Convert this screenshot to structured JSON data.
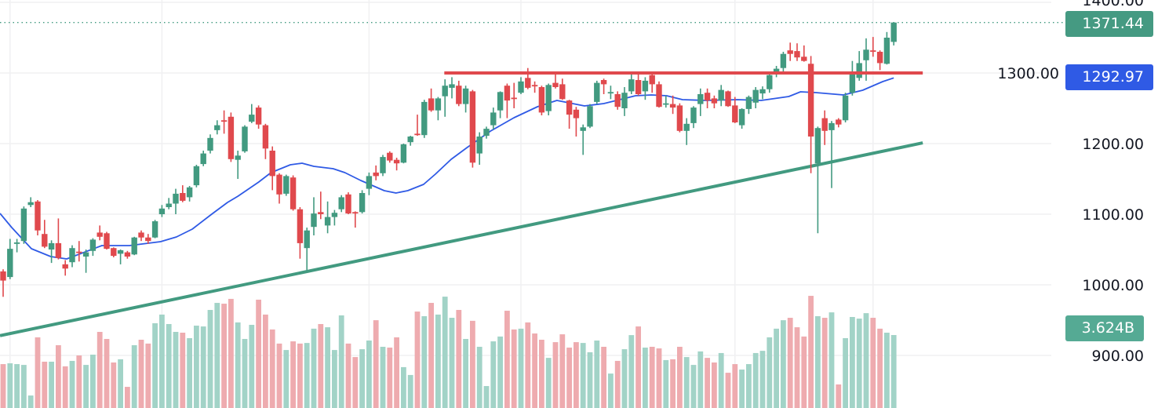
{
  "chart_data": {
    "type": "candlestick",
    "title": "",
    "xlabel": "",
    "ylabel": "",
    "ylim": [
      896,
      1403
    ],
    "y_ticks": [
      "1400.00",
      "1300.00",
      "1200.00",
      "1100.00",
      "1000.00",
      "900.00"
    ],
    "y_tick_values": [
      1400,
      1300,
      1200,
      1100,
      1000,
      900
    ],
    "grid": true,
    "colors": {
      "up": "#429a80",
      "down": "#e0494d",
      "up_volume": "#a2d3c7",
      "down_volume": "#eeabaf",
      "ma": "#2f5ae5",
      "resistance": "#e0494d",
      "support": "#429a80",
      "last_price": "#429a80"
    },
    "candles_ohlc": [
      [
        1019,
        1022,
        983,
        1006
      ],
      [
        1011,
        1065,
        1008,
        1051
      ],
      [
        1059,
        1065,
        1046,
        1060
      ],
      [
        1062,
        1111,
        1058,
        1108
      ],
      [
        1113,
        1124,
        1110,
        1117
      ],
      [
        1118,
        1120,
        1070,
        1077
      ],
      [
        1072,
        1092,
        1052,
        1054
      ],
      [
        1050,
        1063,
        1031,
        1059
      ],
      [
        1059,
        1094,
        1036,
        1038
      ],
      [
        1029,
        1035,
        1013,
        1023
      ],
      [
        1032,
        1056,
        1025,
        1052
      ],
      [
        1047,
        1062,
        1033,
        1046
      ],
      [
        1040,
        1050,
        1017,
        1046
      ],
      [
        1048,
        1066,
        1041,
        1064
      ],
      [
        1074,
        1084,
        1063,
        1068
      ],
      [
        1073,
        1075,
        1050,
        1051
      ],
      [
        1052,
        1053,
        1039,
        1041
      ],
      [
        1044,
        1050,
        1029,
        1049
      ],
      [
        1046,
        1048,
        1037,
        1040
      ],
      [
        1043,
        1068,
        1042,
        1067
      ],
      [
        1074,
        1077,
        1062,
        1067
      ],
      [
        1067,
        1072,
        1058,
        1062
      ],
      [
        1067,
        1092,
        1066,
        1090
      ],
      [
        1100,
        1113,
        1096,
        1108
      ],
      [
        1110,
        1123,
        1107,
        1115
      ],
      [
        1115,
        1136,
        1100,
        1129
      ],
      [
        1130,
        1141,
        1117,
        1119
      ],
      [
        1124,
        1140,
        1118,
        1138
      ],
      [
        1141,
        1170,
        1138,
        1168
      ],
      [
        1171,
        1190,
        1168,
        1186
      ],
      [
        1190,
        1213,
        1186,
        1208
      ],
      [
        1219,
        1233,
        1213,
        1226
      ],
      [
        1233,
        1247,
        1214,
        1231
      ],
      [
        1238,
        1244,
        1174,
        1178
      ],
      [
        1177,
        1190,
        1150,
        1183
      ],
      [
        1189,
        1226,
        1187,
        1224
      ],
      [
        1231,
        1256,
        1229,
        1241
      ],
      [
        1251,
        1254,
        1221,
        1227
      ],
      [
        1226,
        1228,
        1178,
        1193
      ],
      [
        1190,
        1196,
        1134,
        1154
      ],
      [
        1156,
        1158,
        1115,
        1128
      ],
      [
        1129,
        1156,
        1126,
        1154
      ],
      [
        1152,
        1155,
        1105,
        1107
      ],
      [
        1107,
        1110,
        1037,
        1059
      ],
      [
        1052,
        1081,
        1020,
        1077
      ],
      [
        1082,
        1124,
        1070,
        1101
      ],
      [
        1103,
        1132,
        1093,
        1100
      ],
      [
        1084,
        1118,
        1073,
        1096
      ],
      [
        1096,
        1106,
        1084,
        1102
      ],
      [
        1107,
        1127,
        1103,
        1124
      ],
      [
        1128,
        1131,
        1100,
        1101
      ],
      [
        1103,
        1104,
        1081,
        1102
      ],
      [
        1103,
        1134,
        1101,
        1130
      ],
      [
        1136,
        1159,
        1127,
        1154
      ],
      [
        1159,
        1169,
        1148,
        1154
      ],
      [
        1158,
        1184,
        1154,
        1181
      ],
      [
        1187,
        1189,
        1173,
        1176
      ],
      [
        1177,
        1180,
        1162,
        1172
      ],
      [
        1173,
        1200,
        1172,
        1199
      ],
      [
        1202,
        1211,
        1197,
        1210
      ],
      [
        1214,
        1241,
        1211,
        1212
      ],
      [
        1212,
        1262,
        1208,
        1259
      ],
      [
        1264,
        1278,
        1245,
        1247
      ],
      [
        1247,
        1266,
        1233,
        1264
      ],
      [
        1267,
        1291,
        1238,
        1282
      ],
      [
        1279,
        1294,
        1264,
        1284
      ],
      [
        1282,
        1289,
        1253,
        1256
      ],
      [
        1256,
        1282,
        1244,
        1278
      ],
      [
        1274,
        1276,
        1166,
        1173
      ],
      [
        1186,
        1216,
        1170,
        1210
      ],
      [
        1211,
        1224,
        1207,
        1221
      ],
      [
        1226,
        1251,
        1220,
        1244
      ],
      [
        1247,
        1274,
        1236,
        1273
      ],
      [
        1282,
        1285,
        1236,
        1261
      ],
      [
        1265,
        1286,
        1250,
        1264
      ],
      [
        1272,
        1294,
        1270,
        1288
      ],
      [
        1293,
        1307,
        1277,
        1279
      ],
      [
        1283,
        1288,
        1272,
        1282
      ],
      [
        1280,
        1282,
        1240,
        1244
      ],
      [
        1246,
        1285,
        1240,
        1283
      ],
      [
        1286,
        1298,
        1278,
        1280
      ],
      [
        1284,
        1292,
        1262,
        1263
      ],
      [
        1261,
        1262,
        1221,
        1241
      ],
      [
        1248,
        1252,
        1210,
        1236
      ],
      [
        1218,
        1227,
        1184,
        1223
      ],
      [
        1224,
        1256,
        1222,
        1253
      ],
      [
        1259,
        1289,
        1256,
        1286
      ],
      [
        1290,
        1292,
        1270,
        1284
      ],
      [
        1272,
        1282,
        1263,
        1273
      ],
      [
        1270,
        1274,
        1248,
        1252
      ],
      [
        1250,
        1280,
        1239,
        1272
      ],
      [
        1274,
        1300,
        1270,
        1291
      ],
      [
        1290,
        1300,
        1268,
        1270
      ],
      [
        1274,
        1294,
        1262,
        1289
      ],
      [
        1297,
        1300,
        1272,
        1284
      ],
      [
        1284,
        1288,
        1251,
        1252
      ],
      [
        1256,
        1268,
        1251,
        1257
      ],
      [
        1256,
        1268,
        1242,
        1251
      ],
      [
        1254,
        1257,
        1216,
        1218
      ],
      [
        1218,
        1236,
        1198,
        1228
      ],
      [
        1229,
        1253,
        1222,
        1251
      ],
      [
        1256,
        1278,
        1239,
        1270
      ],
      [
        1272,
        1278,
        1250,
        1261
      ],
      [
        1264,
        1268,
        1250,
        1257
      ],
      [
        1261,
        1283,
        1253,
        1276
      ],
      [
        1274,
        1275,
        1252,
        1253
      ],
      [
        1254,
        1266,
        1229,
        1230
      ],
      [
        1226,
        1250,
        1221,
        1249
      ],
      [
        1249,
        1268,
        1242,
        1266
      ],
      [
        1258,
        1280,
        1250,
        1276
      ],
      [
        1271,
        1281,
        1263,
        1277
      ],
      [
        1277,
        1299,
        1272,
        1297
      ],
      [
        1298,
        1310,
        1294,
        1306
      ],
      [
        1307,
        1330,
        1300,
        1327
      ],
      [
        1332,
        1343,
        1317,
        1327
      ],
      [
        1331,
        1342,
        1317,
        1322
      ],
      [
        1323,
        1339,
        1316,
        1317
      ],
      [
        1313,
        1324,
        1158,
        1210
      ],
      [
        1172,
        1224,
        1073,
        1222
      ],
      [
        1236,
        1247,
        1198,
        1218
      ],
      [
        1219,
        1232,
        1137,
        1229
      ],
      [
        1234,
        1236,
        1223,
        1227
      ],
      [
        1233,
        1272,
        1230,
        1268
      ],
      [
        1272,
        1317,
        1268,
        1302
      ],
      [
        1293,
        1331,
        1289,
        1314
      ],
      [
        1318,
        1349,
        1289,
        1333
      ],
      [
        1332,
        1351,
        1323,
        1331
      ],
      [
        1330,
        1332,
        1304,
        1314
      ],
      [
        1313,
        1358,
        1312,
        1350
      ],
      [
        1344,
        1372,
        1339,
        1371.44
      ]
    ],
    "volumes_billions": [
      2.18,
      2.22,
      2.18,
      2.14,
      0.62,
      3.51,
      2.3,
      2.3,
      3.12,
      2.07,
      2.34,
      2.61,
      2.14,
      2.65,
      3.78,
      3.43,
      2.26,
      2.42,
      1.05,
      3.12,
      3.39,
      3.2,
      4.21,
      4.64,
      4.17,
      3.78,
      3.74,
      3.47,
      4.09,
      4.05,
      4.87,
      5.22,
      5.18,
      5.42,
      4.25,
      3.43,
      4.13,
      5.38,
      4.64,
      3.9,
      3.2,
      2.88,
      3.31,
      3.2,
      3.23,
      3.94,
      4.17,
      4.01,
      2.88,
      4.6,
      3.2,
      2.53,
      2.92,
      3.35,
      4.36,
      3.04,
      3.0,
      3.51,
      2.03,
      1.64,
      4.79,
      4.56,
      5.22,
      4.64,
      5.53,
      4.48,
      4.87,
      3.43,
      4.33,
      3.04,
      1.09,
      3.31,
      3.55,
      4.83,
      3.9,
      3.94,
      4.25,
      3.7,
      3.39,
      2.49,
      3.27,
      3.66,
      3.0,
      3.27,
      3.23,
      2.77,
      3.35,
      3.04,
      1.71,
      2.34,
      2.92,
      3.62,
      4.05,
      3.0,
      3.04,
      2.96,
      2.38,
      2.42,
      3.04,
      2.53,
      2.14,
      2.81,
      2.49,
      2.26,
      2.73,
      1.75,
      2.18,
      1.91,
      2.18,
      2.73,
      2.84,
      3.51,
      3.94,
      4.36,
      4.48,
      4.01,
      3.55,
      5.57,
      4.56,
      4.48,
      4.75,
      1.17,
      3.47,
      4.52,
      4.44,
      4.71,
      4.48,
      3.94,
      3.74,
      3.624
    ],
    "moving_average_points": [
      [
        -0.45,
        1101.1
      ],
      [
        1.25,
        1081.1
      ],
      [
        4.1,
        1051.1
      ],
      [
        6.9,
        1040.0
      ],
      [
        9.2,
        1036.7
      ],
      [
        14.3,
        1055.6
      ],
      [
        18.3,
        1055.6
      ],
      [
        22.8,
        1061.1
      ],
      [
        25.1,
        1067.8
      ],
      [
        27.4,
        1078.9
      ],
      [
        30.2,
        1100.0
      ],
      [
        32.5,
        1116.7
      ],
      [
        34.0,
        1125.5
      ],
      [
        37.0,
        1145.5
      ],
      [
        38.8,
        1158.9
      ],
      [
        41.6,
        1170.0
      ],
      [
        43.3,
        1172.2
      ],
      [
        45.0,
        1167.8
      ],
      [
        47.8,
        1164.4
      ],
      [
        49.5,
        1158.9
      ],
      [
        51.8,
        1147.8
      ],
      [
        55.2,
        1133.3
      ],
      [
        56.9,
        1130.0
      ],
      [
        58.6,
        1133.3
      ],
      [
        60.9,
        1142.2
      ],
      [
        62.6,
        1156.7
      ],
      [
        64.9,
        1177.8
      ],
      [
        67.2,
        1194.4
      ],
      [
        70.6,
        1217.8
      ],
      [
        74.0,
        1236.7
      ],
      [
        77.4,
        1252.2
      ],
      [
        80.2,
        1261.1
      ],
      [
        84.2,
        1253.3
      ],
      [
        87.0,
        1256.7
      ],
      [
        91.6,
        1267.8
      ],
      [
        93.9,
        1268.9
      ],
      [
        96.1,
        1267.8
      ],
      [
        98.4,
        1262.2
      ],
      [
        101.8,
        1261.1
      ],
      [
        106.4,
        1262.2
      ],
      [
        109.8,
        1261.1
      ],
      [
        113.8,
        1266.7
      ],
      [
        115.5,
        1273.3
      ],
      [
        117.7,
        1272.2
      ],
      [
        121.7,
        1268.9
      ],
      [
        124.5,
        1275.6
      ],
      [
        127.4,
        1287.8
      ],
      [
        129.0,
        1292.97
      ]
    ],
    "resistance_line": {
      "price": 1300,
      "from_bar": 63.9,
      "to_bar": 133.2
    },
    "support_trendline": {
      "from": [
        -0.45,
        928
      ],
      "to": [
        133.2,
        1201
      ]
    },
    "last_price": 1371.44,
    "last_price_label": "1371.44",
    "ma_value_label": "1292.97",
    "last_volume_label": "3.624B"
  }
}
